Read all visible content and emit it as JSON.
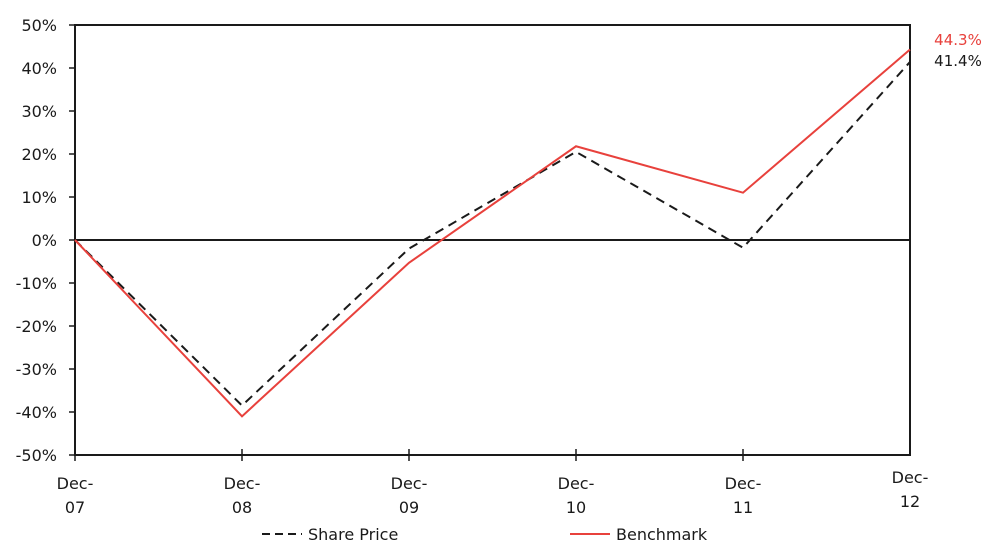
{
  "chart_data": {
    "type": "line",
    "categories": [
      {
        "line1": "Dec-",
        "line2": "07"
      },
      {
        "line1": "Dec-",
        "line2": "08"
      },
      {
        "line1": "Dec-",
        "line2": "09"
      },
      {
        "line1": "Dec-",
        "line2": "10"
      },
      {
        "line1": "Dec-",
        "line2": "11"
      },
      {
        "line1": "Dec-",
        "line2": "12"
      }
    ],
    "ylim": [
      -50,
      50
    ],
    "y_ticks": [
      {
        "value": 50,
        "label": "50%"
      },
      {
        "value": 40,
        "label": "40%"
      },
      {
        "value": 30,
        "label": "30%"
      },
      {
        "value": 20,
        "label": "20%"
      },
      {
        "value": 10,
        "label": "10%"
      },
      {
        "value": 0,
        "label": "0%"
      },
      {
        "value": -10,
        "label": "-10%"
      },
      {
        "value": -20,
        "label": "-20%"
      },
      {
        "value": -30,
        "label": "-30%"
      },
      {
        "value": -40,
        "label": "-40%"
      },
      {
        "value": -50,
        "label": "-50%"
      }
    ],
    "series": [
      {
        "name": "Share Price",
        "values": [
          0,
          -38.5,
          -2,
          20.5,
          -1.8,
          41.4
        ],
        "color": "#1a1a1a",
        "dash": "dashed",
        "end_label": "41.4%"
      },
      {
        "name": "Benchmark",
        "values": [
          0,
          -41,
          -5.3,
          21.8,
          11,
          44.3
        ],
        "color": "#e8413c",
        "dash": "solid",
        "end_label": "44.3%"
      }
    ],
    "grid": false,
    "zero_line": true,
    "legend_position": "bottom"
  }
}
